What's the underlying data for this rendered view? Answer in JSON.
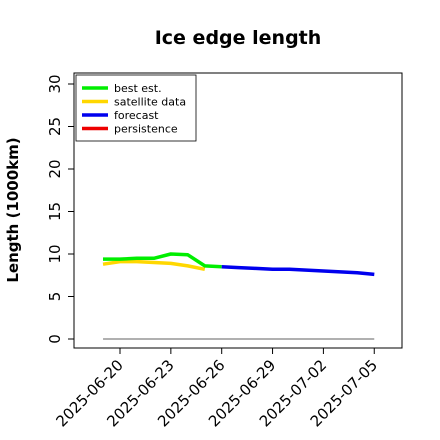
{
  "chart_data": {
    "type": "line",
    "title": "Ice edge length",
    "xlabel": "",
    "ylabel": "Length (1000km)",
    "ylim": [
      0,
      30
    ],
    "yticks": [
      0,
      5,
      10,
      15,
      20,
      25,
      30
    ],
    "xticks": [
      "2025-06-20",
      "2025-06-23",
      "2025-06-26",
      "2025-06-29",
      "2025-07-02",
      "2025-07-05"
    ],
    "highlighted_xtick": "2025-06-26",
    "highlight_color": "#228B22",
    "grid": false,
    "legend_position": "top-left",
    "series": [
      {
        "name": "best est.",
        "color": "#00ee00",
        "x": [
          "2025-06-19",
          "2025-06-20",
          "2025-06-21",
          "2025-06-22",
          "2025-06-23",
          "2025-06-24",
          "2025-06-25",
          "2025-06-26"
        ],
        "y": [
          9.4,
          9.4,
          9.5,
          9.5,
          10.0,
          9.9,
          8.6,
          8.5
        ]
      },
      {
        "name": "satellite data",
        "color": "#ffd700",
        "x": [
          "2025-06-19",
          "2025-06-20",
          "2025-06-21",
          "2025-06-22",
          "2025-06-23",
          "2025-06-24",
          "2025-06-25"
        ],
        "y": [
          8.8,
          9.1,
          9.1,
          9.0,
          8.9,
          8.6,
          8.2
        ]
      },
      {
        "name": "forecast",
        "color": "#0000ee",
        "x": [
          "2025-06-26",
          "2025-06-27",
          "2025-06-28",
          "2025-06-29",
          "2025-06-30",
          "2025-07-01",
          "2025-07-02",
          "2025-07-03",
          "2025-07-04",
          "2025-07-05"
        ],
        "y": [
          8.5,
          8.4,
          8.3,
          8.2,
          8.2,
          8.1,
          8.0,
          7.9,
          7.8,
          7.6
        ]
      },
      {
        "name": "persistence",
        "color": "#ee0000",
        "x": [],
        "y": []
      }
    ],
    "reference_line": {
      "y": 0,
      "x_start": "2025-06-19",
      "x_end": "2025-07-05",
      "color": "#808080"
    }
  }
}
